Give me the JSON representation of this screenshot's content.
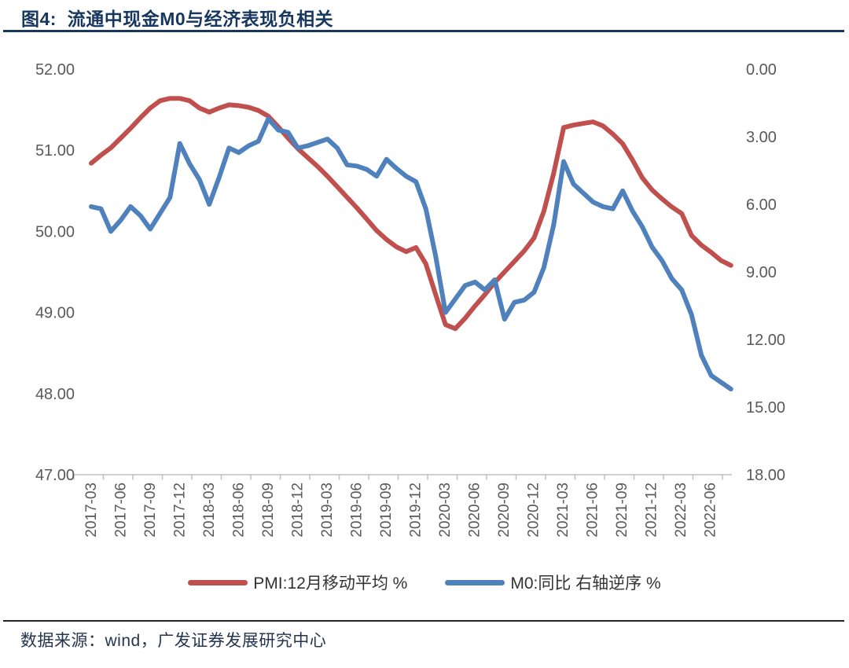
{
  "header": {
    "title": "图4:  流通中现金M0与经济表现负相关"
  },
  "footer": {
    "source": "数据来源：wind，广发证券发展研究中心"
  },
  "legend": {
    "items": [
      {
        "label": "PMI:12月移动平均 %",
        "color": "#c0504d"
      },
      {
        "label": "M0:同比 右轴逆序 %",
        "color": "#4f81bd"
      }
    ]
  },
  "colors": {
    "title": "#17375e",
    "axis_text": "#595959",
    "axis_line": "#bfbfbf",
    "pmi_line": "#c0504d",
    "m0_line": "#4f81bd"
  },
  "chart_data": {
    "type": "line",
    "title": "图4:  流通中现金M0与经济表现负相关",
    "x": [
      "2017-03",
      "2017-04",
      "2017-05",
      "2017-06",
      "2017-07",
      "2017-08",
      "2017-09",
      "2017-10",
      "2017-11",
      "2017-12",
      "2018-01",
      "2018-02",
      "2018-03",
      "2018-04",
      "2018-05",
      "2018-06",
      "2018-07",
      "2018-08",
      "2018-09",
      "2018-10",
      "2018-11",
      "2018-12",
      "2019-01",
      "2019-02",
      "2019-03",
      "2019-04",
      "2019-05",
      "2019-06",
      "2019-07",
      "2019-08",
      "2019-09",
      "2019-10",
      "2019-11",
      "2019-12",
      "2020-01",
      "2020-02",
      "2020-03",
      "2020-04",
      "2020-05",
      "2020-06",
      "2020-07",
      "2020-08",
      "2020-09",
      "2020-10",
      "2020-11",
      "2020-12",
      "2021-01",
      "2021-02",
      "2021-03",
      "2021-04",
      "2021-05",
      "2021-06",
      "2021-07",
      "2021-08",
      "2021-09",
      "2021-10",
      "2021-11",
      "2021-12",
      "2022-01",
      "2022-02",
      "2022-03",
      "2022-04",
      "2022-05",
      "2022-06",
      "2022-07",
      "2022-08"
    ],
    "x_tick_labels": [
      "2017-03",
      "2017-06",
      "2017-09",
      "2017-12",
      "2018-03",
      "2018-06",
      "2018-09",
      "2018-12",
      "2019-03",
      "2019-06",
      "2019-09",
      "2019-12",
      "2020-03",
      "2020-06",
      "2020-09",
      "2020-12",
      "2021-03",
      "2021-06",
      "2021-09",
      "2021-12",
      "2022-03",
      "2022-06"
    ],
    "series": [
      {
        "name": "PMI:12月移动平均 %",
        "axis": "left",
        "color": "#c0504d",
        "values": [
          50.84,
          50.94,
          51.03,
          51.15,
          51.27,
          51.4,
          51.52,
          51.61,
          51.64,
          51.64,
          51.61,
          51.52,
          51.47,
          51.52,
          51.56,
          51.55,
          51.53,
          51.49,
          51.42,
          51.29,
          51.15,
          51.02,
          50.91,
          50.8,
          50.68,
          50.55,
          50.42,
          50.29,
          50.15,
          50.01,
          49.9,
          49.81,
          49.75,
          49.8,
          49.6,
          49.22,
          48.85,
          48.8,
          48.93,
          49.08,
          49.22,
          49.37,
          49.5,
          49.63,
          49.76,
          49.92,
          50.25,
          50.72,
          51.28,
          51.31,
          51.33,
          51.35,
          51.3,
          51.2,
          51.08,
          50.88,
          50.66,
          50.51,
          50.4,
          50.3,
          50.22,
          49.95,
          49.83,
          49.74,
          49.64,
          49.58
        ]
      },
      {
        "name": "M0:同比 右轴逆序 %",
        "axis": "right",
        "color": "#4f81bd",
        "values": [
          6.1,
          6.2,
          7.2,
          6.7,
          6.1,
          6.5,
          7.1,
          6.4,
          5.7,
          3.3,
          4.2,
          4.9,
          6.0,
          4.8,
          3.5,
          3.7,
          3.4,
          3.2,
          2.2,
          2.7,
          2.8,
          3.5,
          3.4,
          3.25,
          3.1,
          3.5,
          4.25,
          4.3,
          4.45,
          4.75,
          4.0,
          4.4,
          4.75,
          5.0,
          6.2,
          8.3,
          10.8,
          10.2,
          9.6,
          9.45,
          9.8,
          9.35,
          11.1,
          10.35,
          10.25,
          9.9,
          8.8,
          6.9,
          4.1,
          5.1,
          5.5,
          5.9,
          6.1,
          6.2,
          5.4,
          6.3,
          7.0,
          7.9,
          8.5,
          9.3,
          9.8,
          10.9,
          12.7,
          13.6,
          13.9,
          14.2
        ]
      }
    ],
    "left_axis": {
      "min": 47,
      "max": 52,
      "tick_labels": [
        "52.00",
        "51.00",
        "50.00",
        "49.00",
        "48.00",
        "47.00"
      ]
    },
    "right_axis": {
      "min": 0,
      "max": 18,
      "inverted": true,
      "tick_labels": [
        "0.00",
        "3.00",
        "6.00",
        "9.00",
        "12.00",
        "15.00",
        "18.00"
      ]
    },
    "grid": false,
    "legend_position": "bottom"
  }
}
